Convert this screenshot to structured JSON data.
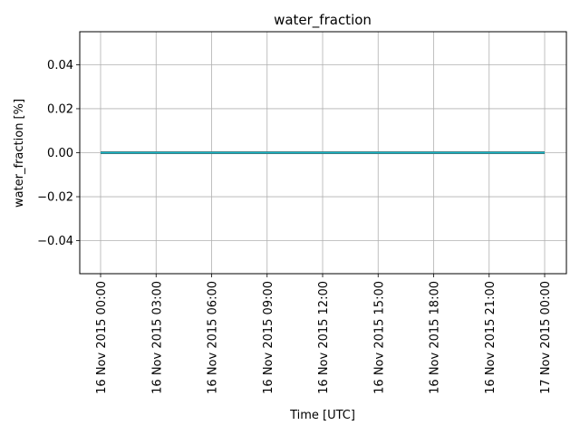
{
  "chart_data": {
    "type": "line",
    "title": "water_fraction",
    "xlabel": "Time  [UTC]",
    "ylabel": "water_fraction  [%]",
    "x_ticks": [
      "16 Nov 2015 00:00",
      "16 Nov 2015 03:00",
      "16 Nov 2015 06:00",
      "16 Nov 2015 09:00",
      "16 Nov 2015 12:00",
      "16 Nov 2015 15:00",
      "16 Nov 2015 18:00",
      "16 Nov 2015 21:00",
      "17 Nov 2015 00:00"
    ],
    "y_ticks": [
      "0.04",
      "0.02",
      "0.00",
      "−0.02",
      "−0.04"
    ],
    "y_tick_values": [
      0.04,
      0.02,
      0.0,
      -0.02,
      -0.04
    ],
    "xlim": [
      "16 Nov 2015 00:00",
      "17 Nov 2015 00:00"
    ],
    "ylim": [
      -0.055,
      0.055
    ],
    "grid": true,
    "series": [
      {
        "color": "#17becf",
        "x": [
          "16 Nov 2015 00:00",
          "17 Nov 2015 00:00"
        ],
        "values": [
          0.0,
          0.0
        ]
      }
    ]
  }
}
